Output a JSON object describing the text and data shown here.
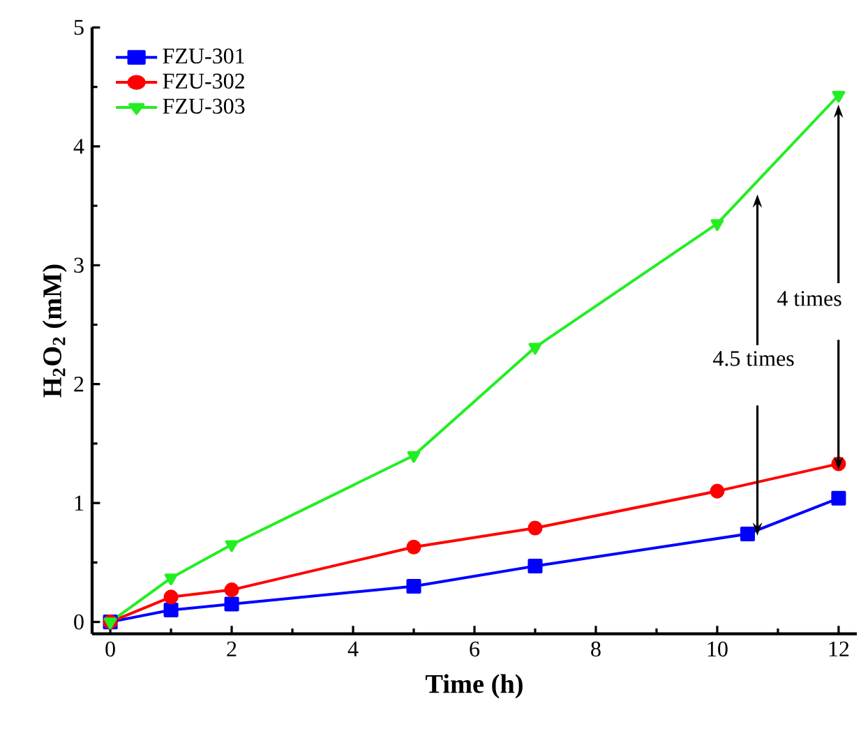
{
  "chart_data": {
    "type": "line",
    "xlabel": "Time (h)",
    "ylabel": "H$_{2}$O$_{2}$ (mM)",
    "xlim": [
      -0.3,
      12.3
    ],
    "ylim": [
      -0.1,
      5
    ],
    "xticks": [
      0,
      2,
      4,
      6,
      8,
      10,
      12
    ],
    "yticks": [
      0,
      1,
      2,
      3,
      4,
      5
    ],
    "grid": false,
    "legend": "top left",
    "series": [
      {
        "name": "FZU-301",
        "color": "#0000ff",
        "marker": "square",
        "x": [
          0,
          1,
          2,
          5,
          7,
          10.5,
          12
        ],
        "values": [
          0,
          0.1,
          0.15,
          0.3,
          0.47,
          0.74,
          1.04
        ]
      },
      {
        "name": "FZU-302",
        "color": "#ff0000",
        "marker": "circle",
        "x": [
          0,
          1,
          2,
          5,
          7,
          10,
          12
        ],
        "values": [
          0,
          0.21,
          0.27,
          0.63,
          0.79,
          1.1,
          1.33
        ]
      },
      {
        "name": "FZU-303",
        "color": "#22ee22",
        "marker": "triangle",
        "x": [
          0,
          1,
          2,
          5,
          7,
          10,
          12
        ],
        "values": [
          0,
          0.37,
          0.65,
          1.4,
          2.31,
          3.35,
          4.43
        ]
      }
    ],
    "annotations": [
      "4 times",
      "4.5 times"
    ]
  }
}
